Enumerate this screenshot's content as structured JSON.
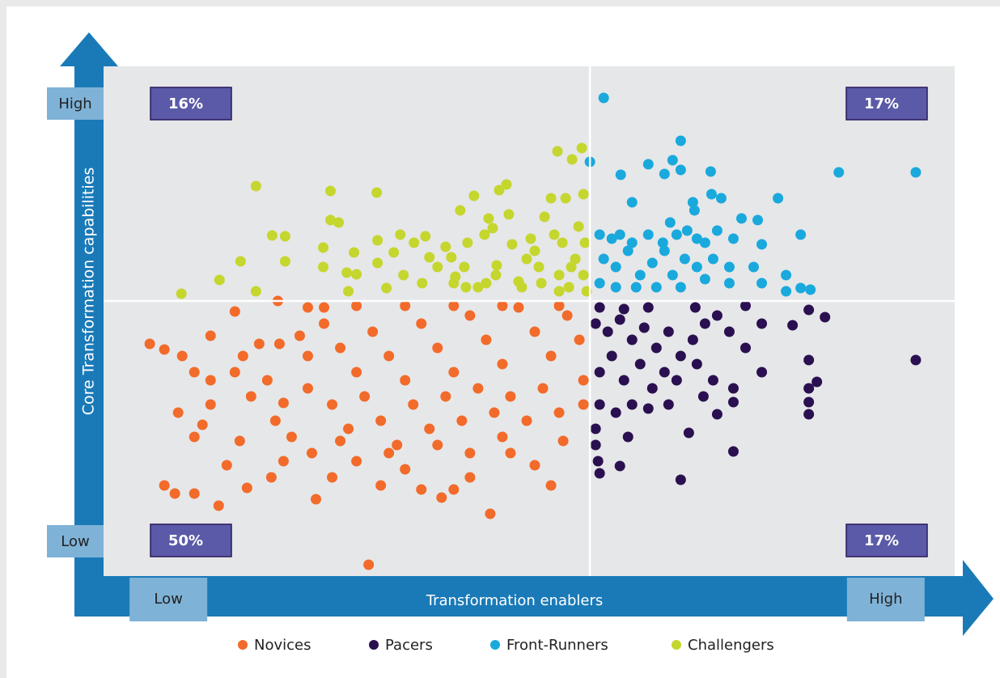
{
  "chart_data": {
    "type": "scatter",
    "x_label": "Transformation enablers",
    "y_label": "Core Transformation capabilities",
    "xlim": [
      0,
      105
    ],
    "ylim": [
      0,
      63
    ],
    "xticks": [
      {
        "value": 8,
        "label": "Low"
      },
      {
        "value": 96.5,
        "label": "High"
      }
    ],
    "yticks": [
      {
        "value": 4.3,
        "label": "Low"
      },
      {
        "value": 58.4,
        "label": "High"
      }
    ],
    "quadrant_lines": {
      "x": 60,
      "y": 34
    },
    "quadrant_labels": [
      {
        "value": 16,
        "label": "16%"
      },
      {
        "value": 17,
        "label": "17%"
      },
      {
        "value": 50,
        "label": "50%"
      },
      {
        "value": 17,
        "label": "17%"
      }
    ],
    "series": [
      {
        "name": "Novices",
        "color": "#f26b2a",
        "x": [
          5.7,
          7.5,
          9.7,
          11.2,
          13.2,
          16.2,
          17.2,
          19.2,
          21.7,
          24.2,
          25.2,
          9.2,
          11.2,
          13.2,
          12.2,
          15.2,
          16.8,
          18.2,
          20.2,
          22.2,
          23.2,
          7.5,
          8.8,
          11.2,
          14.2,
          17.7,
          20.7,
          22.2,
          25.7,
          26.2,
          28.2,
          31.2,
          32.7,
          34.2,
          37.2,
          39.2,
          41.7,
          43.2,
          45.2,
          47.7,
          50.2,
          53.2,
          55.2,
          56.7,
          27.2,
          29.2,
          31.2,
          33.2,
          35.2,
          37.2,
          39.2,
          41.2,
          43.2,
          45.2,
          47.2,
          49.2,
          51.2,
          53.2,
          55.2,
          57.2,
          58.7,
          28.2,
          30.2,
          32.2,
          34.2,
          36.2,
          38.2,
          40.2,
          42.2,
          44.2,
          46.2,
          48.2,
          50.2,
          52.2,
          54.2,
          56.2,
          59.2,
          59.2,
          25.2,
          31.2,
          37.2,
          43.2,
          49.2,
          56.2,
          21.5,
          27.2,
          21.2,
          25.2,
          16.2,
          13.2,
          49.2,
          45.2,
          41.2,
          35.2,
          29.2
        ],
        "y": [
          28.7,
          28,
          27.2,
          25.2,
          29.7,
          32.7,
          27.2,
          28.7,
          28.7,
          29.7,
          27.2,
          20.2,
          17.2,
          21.2,
          18.7,
          13.7,
          16.7,
          22.2,
          24.2,
          21.4,
          17.2,
          11.2,
          10.2,
          10.2,
          8.7,
          10.9,
          12.2,
          14.2,
          15.2,
          9.5,
          12.2,
          14.2,
          1.4,
          11.2,
          13.2,
          10.7,
          9.7,
          10.7,
          12.2,
          7.7,
          15.2,
          13.7,
          11.2,
          16.7,
          31.2,
          28.2,
          25.2,
          30.2,
          27.2,
          24.2,
          31.2,
          28.2,
          25.2,
          32.2,
          29.2,
          26.2,
          33.2,
          30.2,
          27.2,
          32.2,
          29.2,
          21.2,
          18.2,
          22.2,
          19.2,
          16.2,
          21.2,
          18.2,
          22.2,
          19.2,
          23.2,
          20.2,
          22.2,
          19.2,
          23.2,
          20.2,
          21.2,
          24.2,
          33.2,
          33.4,
          33.4,
          33.4,
          33.4,
          33.4,
          34,
          33.2,
          19.2,
          23.2,
          25.2,
          24.2,
          17.2,
          15.2,
          16.2,
          15.2,
          16.7
        ]
      },
      {
        "name": "Pacers",
        "color": "#2a1050",
        "x": [
          61.2,
          64.2,
          67.2,
          73,
          79.2,
          87,
          89,
          85,
          100.2,
          60.7,
          62.2,
          63.7,
          65.2,
          66.7,
          68.2,
          69.7,
          71.2,
          72.7,
          74.2,
          75.7,
          77.2,
          79.2,
          81.2,
          81.2,
          87,
          88,
          87,
          87,
          87,
          61.2,
          62.7,
          64.2,
          66.2,
          67.7,
          69.2,
          70.7,
          73.2,
          75.2,
          77.7,
          77.7,
          74,
          61.2,
          63.2,
          65.2,
          67.2,
          69.7,
          75.7,
          60.7,
          64.7,
          72.2,
          61,
          63.7,
          77.7,
          71.2,
          61.2,
          60.7
        ],
        "y": [
          33.2,
          33,
          33.2,
          33.2,
          33.4,
          32.9,
          32,
          31,
          26.7,
          31.2,
          30.2,
          31.7,
          29.2,
          30.7,
          28.2,
          30.2,
          27.2,
          29.2,
          31.2,
          32.2,
          30.2,
          28.2,
          31.2,
          25.2,
          26.7,
          24,
          23.2,
          21.5,
          20,
          25.2,
          27.2,
          24.2,
          26.2,
          23.2,
          25.2,
          24.2,
          26.2,
          24.2,
          23.2,
          21.5,
          22.2,
          21.2,
          20.2,
          21.2,
          20.7,
          21.2,
          20,
          18.2,
          17.2,
          17.7,
          14.2,
          13.6,
          15.4,
          11.9,
          12.7,
          16.2
        ]
      },
      {
        "name": "Front-Runners",
        "color": "#1aa9dd",
        "x": [
          61.7,
          71.2,
          67.2,
          69.2,
          70.2,
          71.2,
          74.9,
          63.8,
          60,
          90.7,
          100.2,
          83.2,
          75,
          76.2,
          72.7,
          72.9,
          65.2,
          69.9,
          78.7,
          80.7,
          61.2,
          62.7,
          63.7,
          65.2,
          67.2,
          69,
          70.7,
          72,
          73.2,
          74.2,
          75.7,
          77.7,
          81.2,
          86,
          61.7,
          63.2,
          64.7,
          66.2,
          67.7,
          69.2,
          70.2,
          71.7,
          73.2,
          75.2,
          77.2,
          80.2,
          61.2,
          63.2,
          65.7,
          68.2,
          71.2,
          74.2,
          81.2,
          84.2,
          86,
          87.2,
          84.2,
          77.2
        ],
        "y": [
          59.1,
          53.8,
          50.9,
          49.7,
          51.4,
          50.2,
          50,
          49.6,
          51.2,
          49.9,
          49.9,
          46.7,
          47.2,
          46.7,
          46.2,
          45.2,
          46.2,
          43.7,
          44.2,
          44,
          42.2,
          41.7,
          42.2,
          41.2,
          42.2,
          41.2,
          42.2,
          42.7,
          41.7,
          41.2,
          42.7,
          41.7,
          41,
          42.2,
          39.2,
          38.2,
          40.2,
          37.2,
          38.7,
          40.2,
          37.2,
          39.2,
          38.2,
          39.2,
          38.2,
          38.2,
          36.2,
          35.7,
          35.7,
          35.7,
          35.7,
          36.7,
          36.2,
          37.2,
          35.6,
          35.4,
          35.2,
          36.2
        ]
      },
      {
        "name": "Challengers",
        "color": "#c5d62e",
        "x": [
          9.6,
          14.3,
          16.9,
          18.8,
          18.8,
          20.8,
          22.4,
          22.4,
          27.1,
          27.1,
          28,
          28,
          29,
          30,
          30.2,
          30.9,
          31.2,
          33.7,
          33.8,
          33.8,
          34.9,
          35.8,
          36.6,
          37,
          38.3,
          39.3,
          39.7,
          40.2,
          41.2,
          42.2,
          42.9,
          43.4,
          44,
          44.5,
          44.9,
          45.7,
          46.2,
          47,
          47.5,
          48,
          48.5,
          48.8,
          49.7,
          50,
          50.4,
          51.2,
          52.2,
          52.7,
          53.2,
          53.7,
          54.4,
          55.2,
          55.6,
          56,
          56.2,
          56.6,
          57,
          57.4,
          57.8,
          58.2,
          58.6,
          59,
          59.2,
          59.4,
          59.2,
          59.6,
          47.2,
          51.6,
          44.7,
          43.2,
          48.4,
          54,
          57.7,
          56.2
        ],
        "y": [
          34.9,
          36.6,
          38.9,
          48.2,
          35.2,
          42.1,
          42,
          38.9,
          40.6,
          38.2,
          47.6,
          44,
          43.7,
          37.5,
          35.2,
          40,
          37.3,
          47.4,
          41.5,
          38.7,
          35.6,
          40,
          42.2,
          37.2,
          41.2,
          36.2,
          42,
          39.4,
          38.2,
          40.7,
          39.4,
          37,
          45.2,
          38.2,
          41.2,
          47,
          35.7,
          42.2,
          44.2,
          43,
          38.4,
          47.7,
          48.4,
          44.7,
          41,
          36.4,
          39.2,
          41.7,
          40.2,
          38.2,
          44.4,
          46.7,
          42.2,
          52.5,
          37.2,
          41.2,
          46.7,
          35.7,
          51.5,
          39.2,
          43.2,
          52.9,
          37.2,
          41.2,
          47.2,
          35.2,
          36.2,
          35.7,
          35.7,
          36.2,
          37.2,
          36.2,
          38.2,
          35.2
        ]
      }
    ]
  }
}
